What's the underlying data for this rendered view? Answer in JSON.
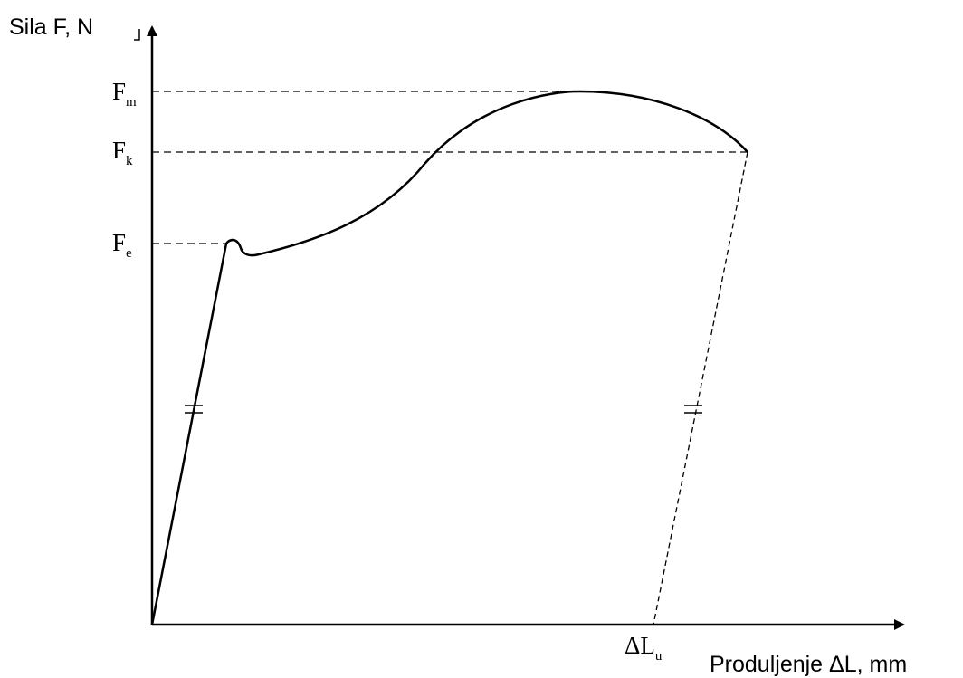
{
  "chart_data": {
    "type": "line",
    "ylabel": "Sila F, N",
    "xlabel": "Produljenje ΔL, mm",
    "y_ticks": [
      {
        "symbol": "F",
        "sub": "m",
        "role": "max"
      },
      {
        "symbol": "F",
        "sub": "k",
        "role": "final"
      },
      {
        "symbol": "F",
        "sub": "e",
        "role": "yield"
      }
    ],
    "x_ticks": [
      {
        "symbol": "ΔL",
        "sub": "u",
        "role": "permanent"
      }
    ],
    "curve": {
      "elastic_end_x": 0.13,
      "yield_peak_x": 0.15,
      "yield_dip_x": 0.18,
      "yield_dip_y": 0.86,
      "max_x": 0.74,
      "fracture_x": 1.0
    },
    "unloading_line": {
      "from": "fracture",
      "to": "ΔLu",
      "style": "dashed"
    },
    "parallel_marks": "="
  }
}
